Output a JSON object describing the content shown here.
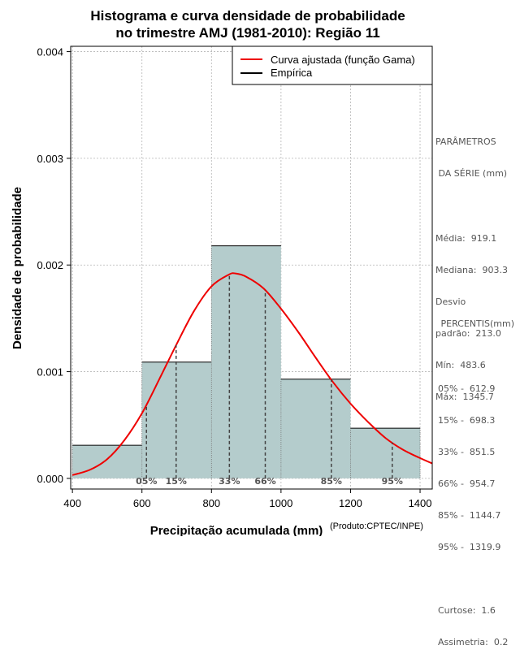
{
  "chart_data": {
    "type": "histogram",
    "title": "Histograma e curva densidade de probabilidade",
    "subtitle": "no trimestre AMJ (1981-2010): Região 11",
    "xlabel": "Precipitação acumulada (mm)",
    "ylabel": "Densidade de probabilidade",
    "credit": "(Produto:CPTEC/INPE)",
    "xlim": [
      395,
      1435
    ],
    "ylim": [
      -0.0001,
      0.00405
    ],
    "x_ticks": [
      400,
      600,
      800,
      1000,
      1200,
      1400
    ],
    "x_tick_labels": [
      "400",
      "600",
      "800",
      "1000",
      "1200",
      "1400"
    ],
    "y_ticks": [
      0,
      0.001,
      0.002,
      0.003,
      0.004
    ],
    "y_tick_labels": [
      "0.000",
      "0.001",
      "0.002",
      "0.003",
      "0.004"
    ],
    "grid": true,
    "bins": [
      {
        "from": 400,
        "to": 600,
        "density": 0.00031
      },
      {
        "from": 600,
        "to": 800,
        "density": 0.00109
      },
      {
        "from": 800,
        "to": 1000,
        "density": 0.00218
      },
      {
        "from": 1000,
        "to": 1200,
        "density": 0.00093
      },
      {
        "from": 1200,
        "to": 1400,
        "density": 0.00047
      }
    ],
    "curve": {
      "name": "Curva ajustada (função Gama)",
      "x": [
        400,
        450,
        500,
        550,
        600,
        650,
        700,
        750,
        800,
        850,
        870,
        900,
        950,
        1000,
        1050,
        1100,
        1150,
        1200,
        1250,
        1300,
        1350,
        1400,
        1435
      ],
      "values": [
        3e-05,
        8e-05,
        0.00018,
        0.00036,
        0.00061,
        0.00093,
        0.00126,
        0.00157,
        0.0018,
        0.00191,
        0.00192,
        0.00189,
        0.00178,
        0.00159,
        0.00137,
        0.00113,
        0.0009,
        0.0007,
        0.00053,
        0.00038,
        0.00027,
        0.00019,
        0.00014
      ]
    },
    "legend": {
      "position": "top-right",
      "entries": [
        {
          "label": "Curva ajustada (função Gama)",
          "color": "#ee0000"
        },
        {
          "label": "Empírica",
          "color": "#000000"
        }
      ]
    },
    "percentile_lines": [
      {
        "label": "05%",
        "x": 612.9
      },
      {
        "label": "15%",
        "x": 698.3
      },
      {
        "label": "33%",
        "x": 851.5
      },
      {
        "label": "66%",
        "x": 954.7
      },
      {
        "label": "85%",
        "x": 1144.7
      },
      {
        "label": "95%",
        "x": 1319.9
      }
    ],
    "colors": {
      "bar": "#b4cccc",
      "curve": "#ee0000",
      "grid": "#b4b4b4"
    }
  },
  "side_panel": {
    "params_title_1": "PARÂMETROS",
    "params_title_2": " DA SÉRIE (mm)",
    "media": "Média:  919.1",
    "mediana": "Mediana:  903.3",
    "desvio_1": "Desvio",
    "desvio_2": "padrão:  213.0",
    "min": "Mín:  483.6",
    "max": "Máx:  1345.7",
    "percentis_title": " PERCENTIS(mm)",
    "p05": "05% -  612.9",
    "p15": "15% -  698.3",
    "p33": "33% -  851.5",
    "p66": "66% -  954.7",
    "p85": "85% -  1144.7",
    "p95": "95% -  1319.9",
    "curtose": "Curtose:  1.6",
    "assimetria": "Assimetria:  0.2"
  }
}
